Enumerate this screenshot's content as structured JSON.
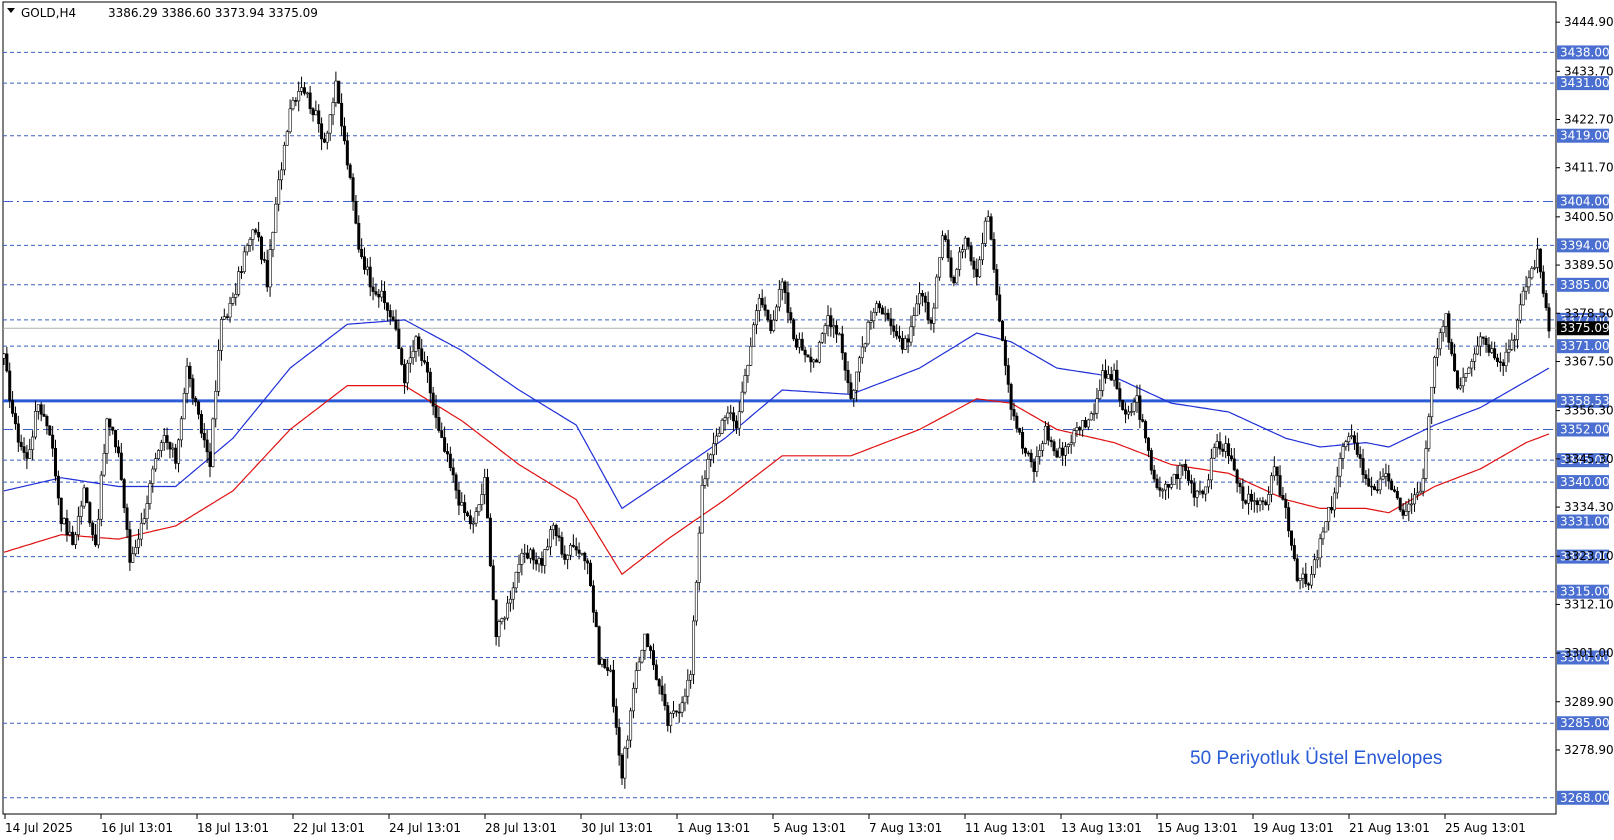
{
  "chart_data": {
    "type": "candlestick",
    "symbol": "GOLD,H4",
    "ohlc_header": "3386.29 3386.60 3373.94 3375.09",
    "annotation": "50 Periyotluk Üstel Envelopes",
    "ylim": [
      3264.3,
      3449.5
    ],
    "y_ticks": [
      3444.9,
      3433.7,
      3422.7,
      3411.7,
      3400.5,
      3389.5,
      3378.5,
      3367.5,
      3356.3,
      3345.3,
      3334.3,
      3323.1,
      3312.1,
      3301.0,
      3289.9,
      3278.9
    ],
    "x_ticks": [
      "14 Jul 2025",
      "16 Jul 13:01",
      "18 Jul 13:01",
      "22 Jul 13:01",
      "24 Jul 13:01",
      "28 Jul 13:01",
      "30 Jul 13:01",
      "1 Aug 13:01",
      "5 Aug 13:01",
      "7 Aug 13:01",
      "11 Aug 13:01",
      "13 Aug 13:01",
      "15 Aug 13:01",
      "19 Aug 13:01",
      "21 Aug 13:01",
      "25 Aug 13:01"
    ],
    "levels": [
      {
        "value": 3438.0,
        "label": "3438.00",
        "style": "dash"
      },
      {
        "value": 3431.0,
        "label": "3431.00",
        "style": "dash"
      },
      {
        "value": 3419.0,
        "label": "3419.00",
        "style": "dash"
      },
      {
        "value": 3404.0,
        "label": "3404.00",
        "style": "dashdot"
      },
      {
        "value": 3394.0,
        "label": "3394.00",
        "style": "dash"
      },
      {
        "value": 3385.0,
        "label": "3385.00",
        "style": "dash"
      },
      {
        "value": 3377.0,
        "label": "3377.00",
        "style": "dash"
      },
      {
        "value": 3371.0,
        "label": "3371.00",
        "style": "dash"
      },
      {
        "value": 3358.53,
        "label": "3358.53",
        "style": "solid"
      },
      {
        "value": 3352.0,
        "label": "3352.00",
        "style": "dashdot"
      },
      {
        "value": 3345.0,
        "label": "3345.00",
        "style": "dash"
      },
      {
        "value": 3340.0,
        "label": "3340.00",
        "style": "dash"
      },
      {
        "value": 3331.0,
        "label": "3331.00",
        "style": "dash"
      },
      {
        "value": 3323.0,
        "label": "3323.00",
        "style": "dash"
      },
      {
        "value": 3315.0,
        "label": "3315.00",
        "style": "dash"
      },
      {
        "value": 3300.0,
        "label": "3300.00",
        "style": "dash"
      },
      {
        "value": 3285.0,
        "label": "3285.00",
        "style": "dash"
      },
      {
        "value": 3268.0,
        "label": "3268.00",
        "style": "dash"
      }
    ],
    "current_price": {
      "value": 3375.09,
      "label": "3375.09"
    },
    "close_path": [
      [
        0,
        3368
      ],
      [
        4,
        3352
      ],
      [
        8,
        3345
      ],
      [
        12,
        3358
      ],
      [
        16,
        3352
      ],
      [
        20,
        3332
      ],
      [
        24,
        3326
      ],
      [
        28,
        3338
      ],
      [
        32,
        3326
      ],
      [
        36,
        3354
      ],
      [
        40,
        3347
      ],
      [
        44,
        3322
      ],
      [
        48,
        3330
      ],
      [
        52,
        3342
      ],
      [
        56,
        3350
      ],
      [
        60,
        3345
      ],
      [
        64,
        3366
      ],
      [
        68,
        3354
      ],
      [
        72,
        3345
      ],
      [
        76,
        3377
      ],
      [
        80,
        3381
      ],
      [
        84,
        3392
      ],
      [
        88,
        3398
      ],
      [
        92,
        3386
      ],
      [
        96,
        3408
      ],
      [
        100,
        3426
      ],
      [
        104,
        3431
      ],
      [
        108,
        3425
      ],
      [
        112,
        3418
      ],
      [
        116,
        3430
      ],
      [
        120,
        3413
      ],
      [
        124,
        3394
      ],
      [
        128,
        3386
      ],
      [
        132,
        3382
      ],
      [
        136,
        3377
      ],
      [
        140,
        3364
      ],
      [
        144,
        3372
      ],
      [
        148,
        3364
      ],
      [
        152,
        3351
      ],
      [
        156,
        3343
      ],
      [
        160,
        3334
      ],
      [
        164,
        3330
      ],
      [
        168,
        3340
      ],
      [
        172,
        3305
      ],
      [
        176,
        3312
      ],
      [
        180,
        3322
      ],
      [
        184,
        3323
      ],
      [
        188,
        3322
      ],
      [
        192,
        3330
      ],
      [
        196,
        3323
      ],
      [
        200,
        3326
      ],
      [
        204,
        3322
      ],
      [
        208,
        3300
      ],
      [
        212,
        3296
      ],
      [
        216,
        3273
      ],
      [
        220,
        3292
      ],
      [
        224,
        3306
      ],
      [
        228,
        3296
      ],
      [
        232,
        3285
      ],
      [
        236,
        3289
      ],
      [
        240,
        3296
      ],
      [
        244,
        3340
      ],
      [
        248,
        3348
      ],
      [
        252,
        3356
      ],
      [
        256,
        3353
      ],
      [
        260,
        3368
      ],
      [
        264,
        3382
      ],
      [
        268,
        3376
      ],
      [
        272,
        3385
      ],
      [
        276,
        3373
      ],
      [
        280,
        3370
      ],
      [
        284,
        3368
      ],
      [
        288,
        3378
      ],
      [
        292,
        3374
      ],
      [
        296,
        3359
      ],
      [
        300,
        3371
      ],
      [
        304,
        3379
      ],
      [
        308,
        3380
      ],
      [
        312,
        3372
      ],
      [
        316,
        3371
      ],
      [
        320,
        3383
      ],
      [
        324,
        3376
      ],
      [
        328,
        3397
      ],
      [
        332,
        3385
      ],
      [
        336,
        3397
      ],
      [
        340,
        3387
      ],
      [
        344,
        3402
      ],
      [
        348,
        3378
      ],
      [
        352,
        3358
      ],
      [
        356,
        3348
      ],
      [
        360,
        3343
      ],
      [
        364,
        3352
      ],
      [
        368,
        3346
      ],
      [
        372,
        3349
      ],
      [
        376,
        3353
      ],
      [
        380,
        3355
      ],
      [
        384,
        3364
      ],
      [
        388,
        3364
      ],
      [
        392,
        3354
      ],
      [
        396,
        3359
      ],
      [
        400,
        3346
      ],
      [
        404,
        3337
      ],
      [
        408,
        3340
      ],
      [
        412,
        3344
      ],
      [
        416,
        3338
      ],
      [
        420,
        3339
      ],
      [
        424,
        3349
      ],
      [
        428,
        3347
      ],
      [
        432,
        3338
      ],
      [
        436,
        3335
      ],
      [
        440,
        3334
      ],
      [
        444,
        3342
      ],
      [
        448,
        3334
      ],
      [
        452,
        3319
      ],
      [
        456,
        3316
      ],
      [
        460,
        3326
      ],
      [
        464,
        3335
      ],
      [
        468,
        3348
      ],
      [
        472,
        3350
      ],
      [
        476,
        3340
      ],
      [
        480,
        3339
      ],
      [
        484,
        3341
      ],
      [
        488,
        3333
      ],
      [
        492,
        3335
      ],
      [
        496,
        3340
      ],
      [
        500,
        3368
      ],
      [
        504,
        3377
      ],
      [
        508,
        3362
      ],
      [
        512,
        3367
      ],
      [
        516,
        3374
      ],
      [
        520,
        3370
      ],
      [
        524,
        3368
      ],
      [
        528,
        3374
      ],
      [
        532,
        3385
      ],
      [
        536,
        3392
      ],
      [
        540,
        3376
      ]
    ],
    "series": [
      {
        "name": "",
        "color": "#1f2fd6",
        "values": [
          [
            0,
            3338
          ],
          [
            20,
            3341
          ],
          [
            40,
            3339
          ],
          [
            60,
            3339
          ],
          [
            80,
            3350
          ],
          [
            100,
            3366
          ],
          [
            120,
            3376
          ],
          [
            140,
            3377
          ],
          [
            160,
            3370
          ],
          [
            180,
            3361
          ],
          [
            200,
            3353
          ],
          [
            216,
            3334
          ],
          [
            232,
            3341
          ],
          [
            252,
            3350
          ],
          [
            272,
            3361
          ],
          [
            296,
            3360
          ],
          [
            320,
            3366
          ],
          [
            340,
            3374
          ],
          [
            352,
            3372
          ],
          [
            368,
            3366
          ],
          [
            388,
            3364
          ],
          [
            408,
            3358
          ],
          [
            428,
            3356
          ],
          [
            448,
            3350
          ],
          [
            460,
            3348
          ],
          [
            476,
            3349
          ],
          [
            484,
            3348
          ],
          [
            500,
            3353
          ],
          [
            516,
            3357
          ],
          [
            532,
            3363
          ],
          [
            540,
            3366
          ]
        ]
      },
      {
        "name": "",
        "color": "#e01010",
        "values": [
          [
            0,
            3324
          ],
          [
            20,
            3328
          ],
          [
            40,
            3327
          ],
          [
            60,
            3330
          ],
          [
            80,
            3338
          ],
          [
            100,
            3352
          ],
          [
            120,
            3362
          ],
          [
            140,
            3362
          ],
          [
            160,
            3354
          ],
          [
            180,
            3344
          ],
          [
            200,
            3336
          ],
          [
            216,
            3319
          ],
          [
            232,
            3327
          ],
          [
            252,
            3336
          ],
          [
            272,
            3346
          ],
          [
            296,
            3346
          ],
          [
            320,
            3352
          ],
          [
            340,
            3359
          ],
          [
            352,
            3358
          ],
          [
            368,
            3352
          ],
          [
            388,
            3349
          ],
          [
            408,
            3344
          ],
          [
            428,
            3342
          ],
          [
            448,
            3336
          ],
          [
            460,
            3334
          ],
          [
            476,
            3334
          ],
          [
            484,
            3333
          ],
          [
            500,
            3339
          ],
          [
            516,
            3343
          ],
          [
            532,
            3349
          ],
          [
            540,
            3351
          ]
        ]
      }
    ]
  }
}
